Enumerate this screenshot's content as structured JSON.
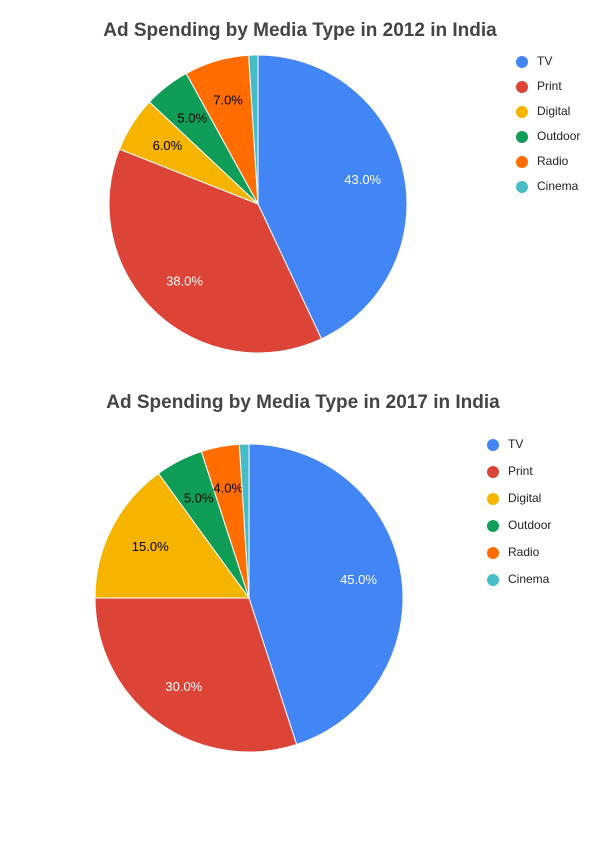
{
  "chart_data": [
    {
      "type": "pie",
      "title": "Ad Spending by Media Type in 2012 in India",
      "categories": [
        "TV",
        "Print",
        "Digital",
        "Outdoor",
        "Radio",
        "Cinema"
      ],
      "values": [
        43,
        38,
        6,
        5,
        7,
        1
      ],
      "value_labels": [
        "43.0%",
        "38.0%",
        "6.0%",
        "5.0%",
        "7.0%",
        null
      ],
      "colors": [
        "#4285f4",
        "#db4437",
        "#f4b400",
        "#0f9d58",
        "#ff6d00",
        "#46bdc6"
      ],
      "legend": "right"
    },
    {
      "type": "pie",
      "title": "Ad Spending by Media Type in 2017 in India",
      "categories": [
        "TV",
        "Print",
        "Digital",
        "Outdoor",
        "Radio",
        "Cinema"
      ],
      "values": [
        45,
        30,
        15,
        5,
        4,
        1
      ],
      "value_labels": [
        "45.0%",
        "30.0%",
        "15.0%",
        "5.0%",
        "4.0%",
        null
      ],
      "colors": [
        "#4285f4",
        "#db4437",
        "#f4b400",
        "#0f9d58",
        "#ff6d00",
        "#46bdc6"
      ],
      "legend": "right"
    }
  ]
}
